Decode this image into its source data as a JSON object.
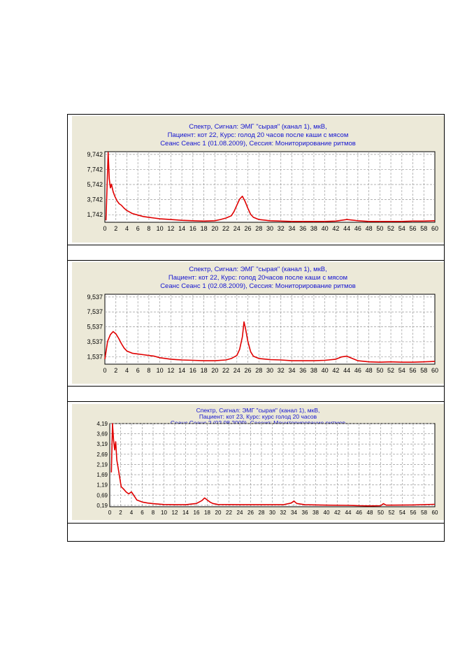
{
  "chart_data": [
    {
      "type": "line",
      "title_lines": [
        "Спектр, Сигнал: ЭМГ \"сырая\" (канал 1), мкВ,",
        "Пациент: кот 22, Курс: голод 20 часов после каши с мясом",
        "Сеанс Сеанс 1 (01.08.2009), Сессия:    Мониторирование  ритмов"
      ],
      "yticks": [
        "9,742",
        "7,742",
        "5,742",
        "3,742",
        "1,742"
      ],
      "ytick_values": [
        9.742,
        7.742,
        5.742,
        3.742,
        1.742
      ],
      "ylim": [
        0.742,
        10.1
      ],
      "xlim": [
        0,
        60
      ],
      "xticks": [
        "0",
        "2",
        "4",
        "6",
        "8",
        "10",
        "12",
        "14",
        "16",
        "18",
        "20",
        "22",
        "24",
        "26",
        "28",
        "30",
        "32",
        "34",
        "36",
        "38",
        "40",
        "42",
        "44",
        "46",
        "48",
        "50",
        "52",
        "54",
        "56",
        "58",
        "60"
      ],
      "grid": true,
      "color": "#e00000",
      "series": [
        {
          "x": [
            0.2,
            0.6,
            0.8,
            1.0,
            1.2,
            1.5,
            1.8,
            2.2,
            2.6,
            3.0,
            3.5,
            4.0,
            4.5,
            5,
            6,
            7,
            8,
            9,
            10,
            12,
            14,
            16,
            18,
            20,
            21,
            22,
            23,
            23.5,
            24,
            24.5,
            25,
            25.5,
            26,
            26.5,
            27,
            28,
            30,
            32,
            34,
            36,
            38,
            40,
            42,
            44,
            46,
            48,
            50,
            52,
            54,
            56,
            58,
            60
          ],
          "values": [
            1.0,
            10.0,
            6.5,
            5.3,
            5.8,
            4.8,
            4.2,
            3.6,
            3.2,
            3.0,
            2.6,
            2.3,
            2.1,
            1.9,
            1.7,
            1.5,
            1.4,
            1.3,
            1.2,
            1.1,
            1.0,
            0.95,
            0.9,
            0.95,
            1.1,
            1.3,
            1.6,
            2.2,
            3.0,
            3.8,
            4.2,
            3.5,
            2.6,
            1.8,
            1.4,
            1.1,
            0.95,
            0.9,
            0.85,
            0.85,
            0.85,
            0.85,
            0.9,
            1.1,
            0.95,
            0.85,
            0.85,
            0.85,
            0.85,
            0.9,
            0.9,
            0.95
          ]
        }
      ]
    },
    {
      "type": "line",
      "title_lines": [
        "Спектр, Сигнал: ЭМГ \"сырая\" (канал 1), мкВ,",
        "Пациент: кот 22, Курс: голод 20часов после каши с мясом",
        "Сеанс Сеанс 1 (02.08.2009), Сессия:    Мониторирование  ритмов"
      ],
      "yticks": [
        "9,537",
        "7,537",
        "5,537",
        "3,537",
        "1,537"
      ],
      "ytick_values": [
        9.537,
        7.537,
        5.537,
        3.537,
        1.537
      ],
      "ylim": [
        0.537,
        9.9
      ],
      "xlim": [
        0,
        60
      ],
      "xticks": [
        "0",
        "2",
        "4",
        "6",
        "8",
        "10",
        "12",
        "14",
        "16",
        "18",
        "20",
        "22",
        "24",
        "26",
        "28",
        "30",
        "32",
        "34",
        "36",
        "38",
        "40",
        "42",
        "44",
        "46",
        "48",
        "50",
        "52",
        "54",
        "56",
        "58",
        "60"
      ],
      "grid": true,
      "color": "#e00000",
      "series": [
        {
          "x": [
            0,
            0.5,
            1,
            1.5,
            2,
            2.5,
            3,
            3.5,
            4,
            5,
            6,
            7,
            8,
            9,
            10,
            12,
            14,
            16,
            18,
            20,
            22,
            23,
            24,
            24.5,
            25,
            25.3,
            25.6,
            26,
            26.5,
            27,
            28,
            30,
            32,
            34,
            36,
            38,
            40,
            42,
            43,
            44,
            45,
            46,
            48,
            50,
            52,
            54,
            56,
            58,
            60
          ],
          "values": [
            1.2,
            3.6,
            4.5,
            4.9,
            4.6,
            4.0,
            3.3,
            2.7,
            2.3,
            2.0,
            1.9,
            1.8,
            1.7,
            1.6,
            1.4,
            1.2,
            1.1,
            1.05,
            1.0,
            1.0,
            1.1,
            1.3,
            1.7,
            2.5,
            4.2,
            6.2,
            5.2,
            3.6,
            2.2,
            1.6,
            1.3,
            1.15,
            1.1,
            1.0,
            1.0,
            1.0,
            1.05,
            1.2,
            1.5,
            1.6,
            1.3,
            1.0,
            0.85,
            0.8,
            0.85,
            0.8,
            0.8,
            0.85,
            0.9
          ]
        }
      ]
    },
    {
      "type": "line",
      "title_lines": [
        "Спектр, Сигнал:  ЭМГ \"сырая\" (канал 1), мкВ,",
        "Пациент: кот 23, Курс: курс голод 20 часов",
        "Сеанс Сеанс 2 (02.08.2009), Сессия:    Мониторирование  ритмов"
      ],
      "yticks": [
        "4,19",
        "3,69",
        "3,19",
        "2,69",
        "2,19",
        "1,69",
        "1,19",
        "0,69",
        "0,19"
      ],
      "ytick_values": [
        4.19,
        3.69,
        3.19,
        2.69,
        2.19,
        1.69,
        1.19,
        0.69,
        0.19
      ],
      "ylim": [
        0.12,
        4.19
      ],
      "xlim": [
        0,
        60
      ],
      "xticks": [
        "0",
        "2",
        "4",
        "6",
        "8",
        "10",
        "12",
        "14",
        "16",
        "18",
        "20",
        "22",
        "24",
        "26",
        "28",
        "30",
        "32",
        "34",
        "36",
        "38",
        "40",
        "42",
        "44",
        "46",
        "48",
        "50",
        "52",
        "54",
        "56",
        "58",
        "60"
      ],
      "grid": true,
      "color": "#e00000",
      "series": [
        {
          "x": [
            0.3,
            0.5,
            0.7,
            0.9,
            1.1,
            1.3,
            1.5,
            1.8,
            2.1,
            2.5,
            3,
            3.5,
            4,
            4.5,
            5,
            6,
            7,
            8,
            10,
            12,
            14,
            16,
            17,
            17.5,
            18,
            18.5,
            19,
            20,
            24,
            28,
            32,
            33.5,
            34,
            34.5,
            36,
            40,
            44,
            46,
            48,
            50,
            50.5,
            51,
            52,
            56,
            60
          ],
          "values": [
            1.8,
            4.19,
            3.4,
            2.9,
            3.3,
            2.4,
            2.1,
            1.6,
            1.1,
            1.0,
            0.85,
            0.75,
            0.85,
            0.65,
            0.45,
            0.35,
            0.3,
            0.27,
            0.23,
            0.22,
            0.22,
            0.28,
            0.42,
            0.55,
            0.45,
            0.35,
            0.28,
            0.23,
            0.22,
            0.22,
            0.22,
            0.3,
            0.4,
            0.28,
            0.22,
            0.2,
            0.19,
            0.17,
            0.16,
            0.17,
            0.27,
            0.2,
            0.2,
            0.21,
            0.24
          ]
        }
      ]
    }
  ]
}
